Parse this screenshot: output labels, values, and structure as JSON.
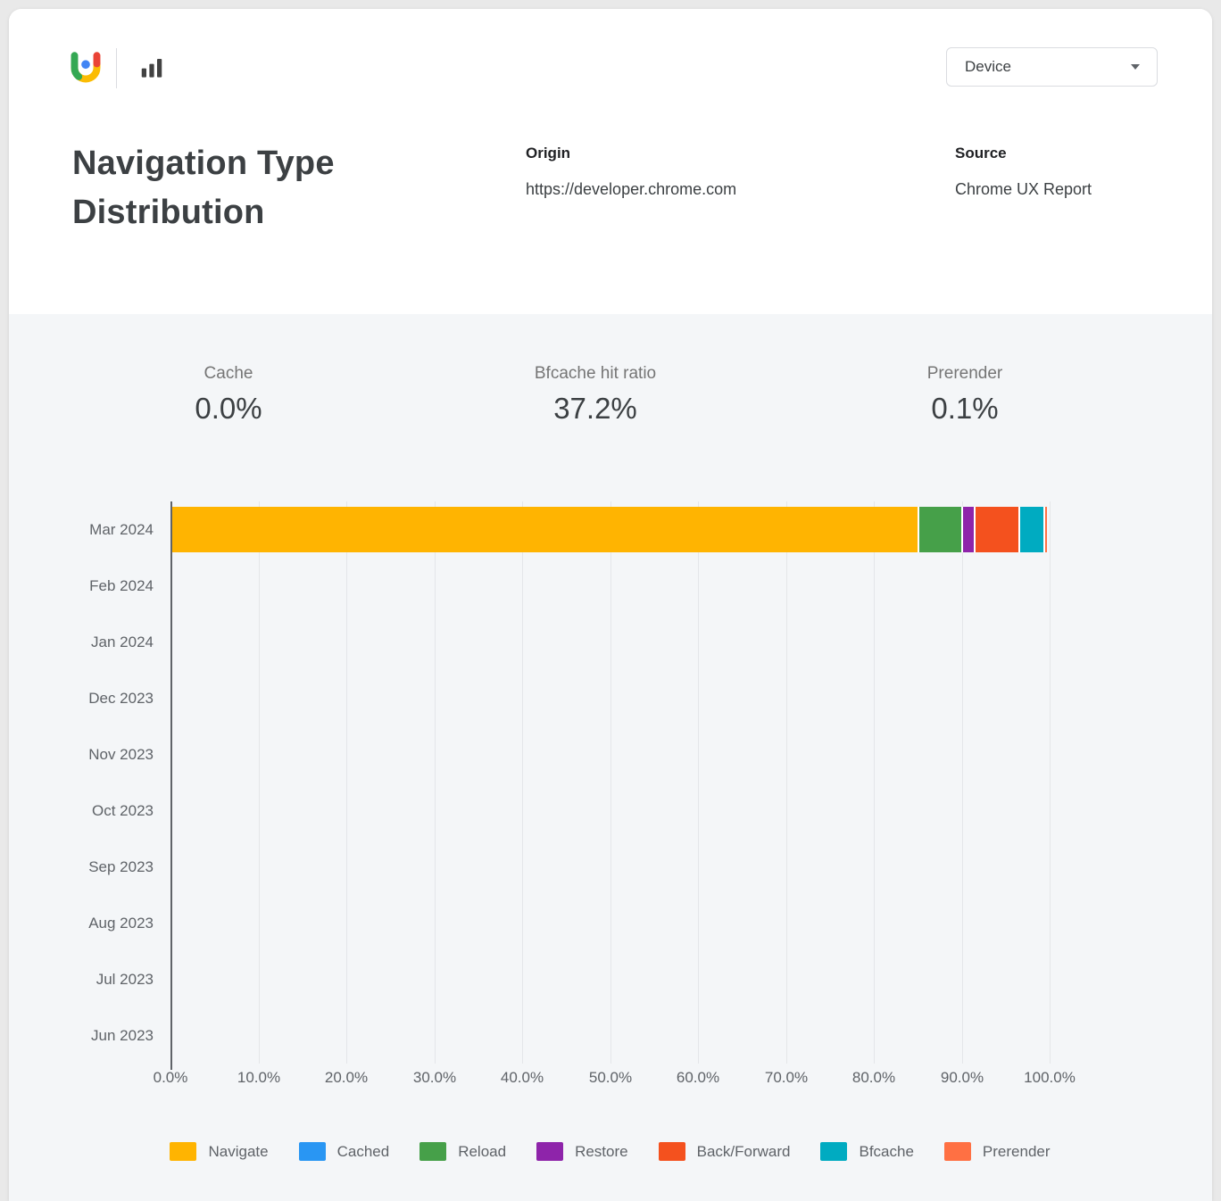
{
  "title": "Navigation Type Distribution",
  "brand": {
    "logo_icon": "crux-logo",
    "chart_type_icon": "bar-chart"
  },
  "device_dropdown": {
    "value": "Device",
    "caret_icon": "caret-down"
  },
  "origin": {
    "label": "Origin",
    "value": "https://developer.chrome.com"
  },
  "source": {
    "label": "Source",
    "value": "Chrome UX Report"
  },
  "stats": [
    {
      "label": "Cache",
      "value": "0.0%"
    },
    {
      "label": "Bfcache hit ratio",
      "value": "37.2%"
    },
    {
      "label": "Prerender",
      "value": "0.1%"
    }
  ],
  "chart_data": {
    "type": "bar",
    "orientation": "horizontal",
    "stacked": true,
    "title": "Navigation Type Distribution",
    "categories": [
      "Mar 2024",
      "Feb 2024",
      "Jan 2024",
      "Dec 2023",
      "Nov 2023",
      "Oct 2023",
      "Sep 2023",
      "Aug 2023",
      "Jul 2023",
      "Jun 2023"
    ],
    "series": [
      {
        "name": "Navigate",
        "color": "#FFB401",
        "values": [
          85.0,
          0,
          0,
          0,
          0,
          0,
          0,
          0,
          0,
          0
        ]
      },
      {
        "name": "Cached",
        "color": "#2996F3",
        "values": [
          0.0,
          0,
          0,
          0,
          0,
          0,
          0,
          0,
          0,
          0
        ]
      },
      {
        "name": "Reload",
        "color": "#46A049",
        "values": [
          4.9,
          0,
          0,
          0,
          0,
          0,
          0,
          0,
          0,
          0
        ]
      },
      {
        "name": "Restore",
        "color": "#8E24AA",
        "values": [
          1.5,
          0,
          0,
          0,
          0,
          0,
          0,
          0,
          0,
          0
        ]
      },
      {
        "name": "Back/Forward",
        "color": "#F4511E",
        "values": [
          5.0,
          0,
          0,
          0,
          0,
          0,
          0,
          0,
          0,
          0
        ]
      },
      {
        "name": "Bfcache",
        "color": "#00ABC1",
        "values": [
          2.9,
          0,
          0,
          0,
          0,
          0,
          0,
          0,
          0,
          0
        ]
      },
      {
        "name": "Prerender",
        "color": "#FF7043",
        "values": [
          0.1,
          0,
          0,
          0,
          0,
          0,
          0,
          0,
          0,
          0
        ]
      }
    ],
    "x_ticks": [
      "0.0%",
      "10.0%",
      "20.0%",
      "30.0%",
      "40.0%",
      "50.0%",
      "60.0%",
      "70.0%",
      "80.0%",
      "90.0%",
      "100.0%"
    ],
    "xlim": [
      0,
      100
    ],
    "grid": true,
    "legend_position": "bottom"
  }
}
